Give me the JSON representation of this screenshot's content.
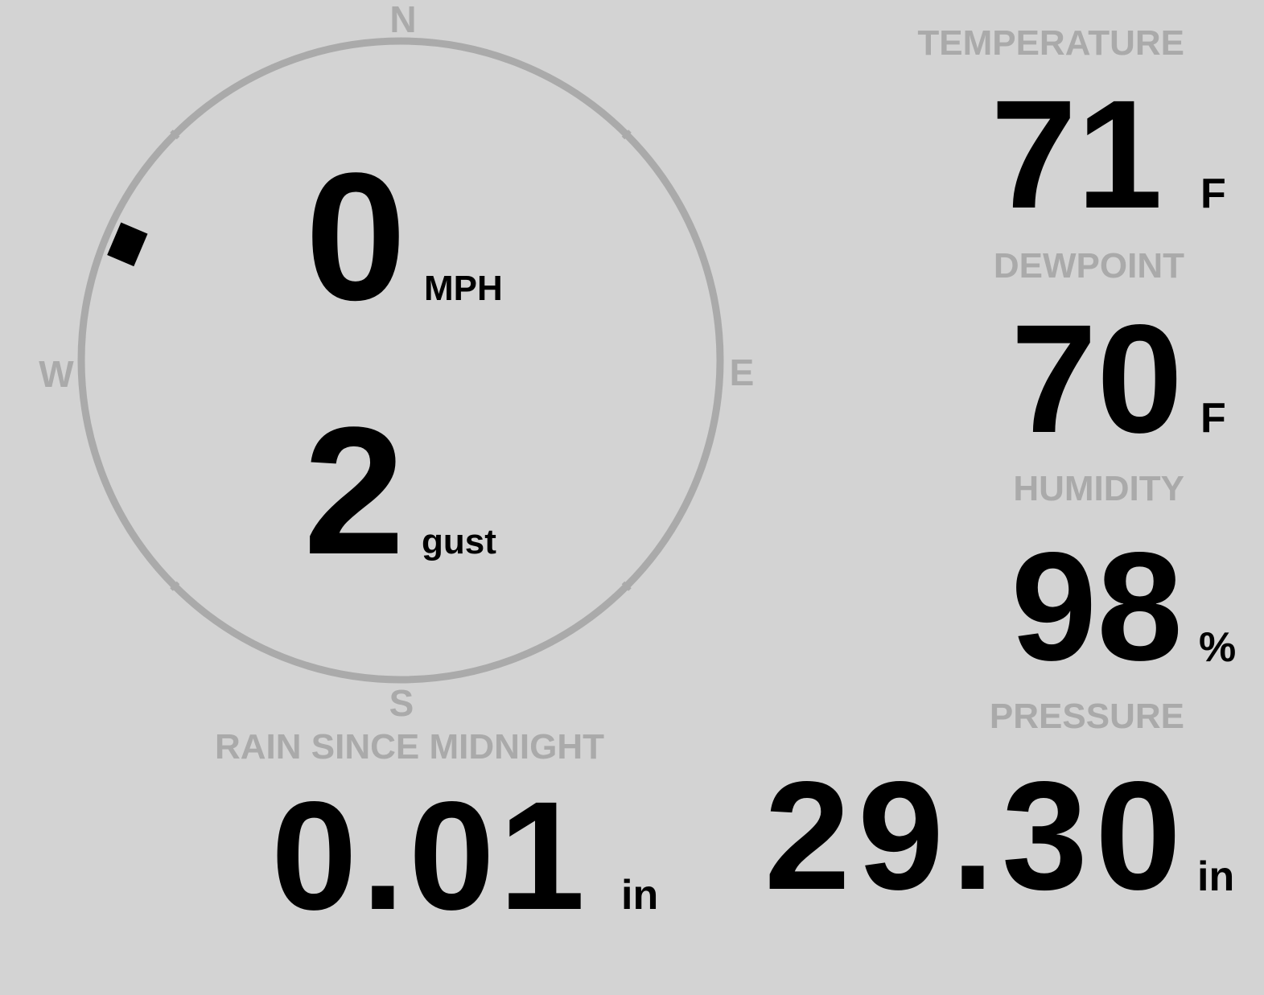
{
  "colors": {
    "background": "#d3d3d3",
    "label": "#aaaaaa",
    "value": "#000000",
    "compass_ring": "#aaaaaa",
    "direction_marker": "#000000"
  },
  "compass": {
    "north": "N",
    "east": "E",
    "south": "S",
    "west": "W",
    "wind_direction_deg": 293
  },
  "wind": {
    "speed": "0",
    "speed_unit": "MPH",
    "gust": "2",
    "gust_unit": "gust"
  },
  "temperature": {
    "label": "TEMPERATURE",
    "value": "71",
    "unit": "F"
  },
  "dewpoint": {
    "label": "DEWPOINT",
    "value": "70",
    "unit": "F"
  },
  "humidity": {
    "label": "HUMIDITY",
    "value": "98",
    "unit": "%"
  },
  "pressure": {
    "label": "PRESSURE",
    "value": "29.30",
    "unit": "in"
  },
  "rain": {
    "label": "RAIN SINCE MIDNIGHT",
    "value": "0.01",
    "unit": "in"
  }
}
